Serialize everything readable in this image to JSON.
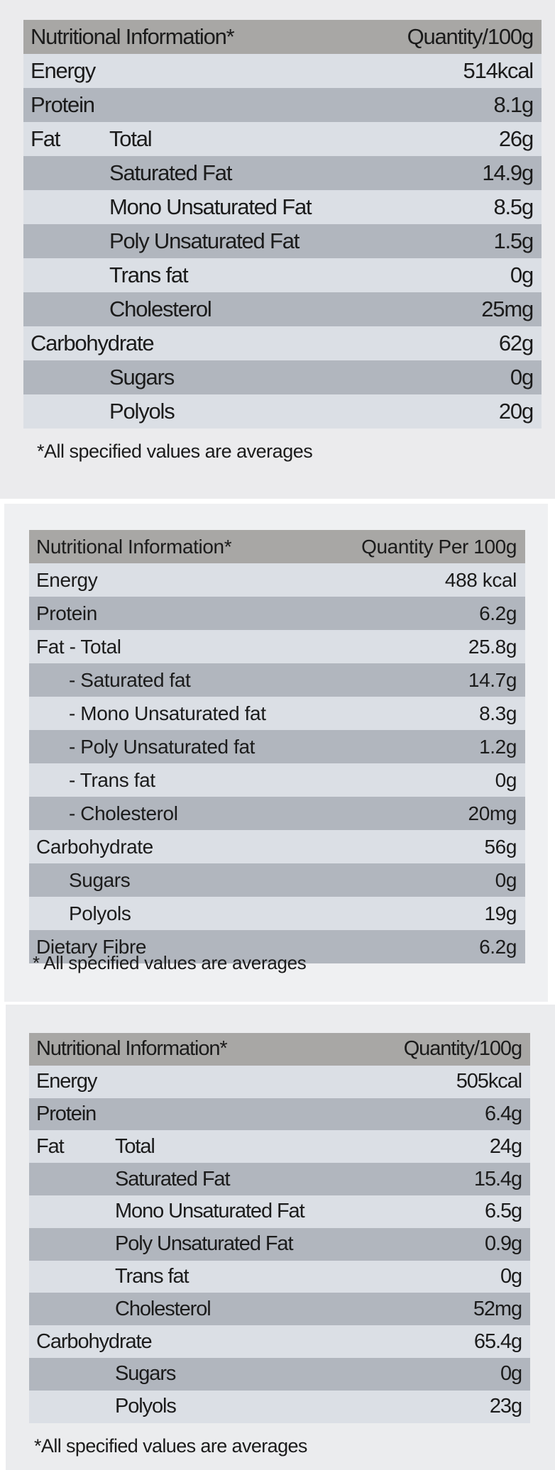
{
  "panels": [
    {
      "header": {
        "label": "Nutritional Information*",
        "value": "Quantity/100g"
      },
      "rows": [
        {
          "group": "",
          "label": "Energy",
          "value": "514kcal"
        },
        {
          "group": "",
          "label": "Protein",
          "value": "8.1g"
        },
        {
          "group": "Fat",
          "label": "Total",
          "value": "26g"
        },
        {
          "group": "",
          "label": "Saturated Fat",
          "value": "14.9g"
        },
        {
          "group": "",
          "label": "Mono Unsaturated Fat",
          "value": "8.5g"
        },
        {
          "group": "",
          "label": "Poly Unsaturated Fat",
          "value": "1.5g"
        },
        {
          "group": "",
          "label": "Trans fat",
          "value": "0g"
        },
        {
          "group": "",
          "label": "Cholesterol",
          "value": "25mg"
        },
        {
          "group": "",
          "label": "Carbohydrate",
          "value": "62g"
        },
        {
          "group": "",
          "label": "Sugars",
          "value": "0g"
        },
        {
          "group": "",
          "label": "Polyols",
          "value": "20g"
        }
      ],
      "footnote": "*All specified values are averages"
    },
    {
      "header": {
        "label": "Nutritional Information*",
        "value": "Quantity Per 100g"
      },
      "rows": [
        {
          "group": "",
          "label": "Energy",
          "value": "488 kcal"
        },
        {
          "group": "",
          "label": "Protein",
          "value": "6.2g"
        },
        {
          "group": "",
          "label": "Fat - Total",
          "value": "25.8g"
        },
        {
          "group": "",
          "label": "- Saturated fat",
          "value": "14.7g"
        },
        {
          "group": "",
          "label": "- Mono Unsaturated fat",
          "value": "8.3g"
        },
        {
          "group": "",
          "label": "- Poly Unsaturated fat",
          "value": "1.2g"
        },
        {
          "group": "",
          "label": "- Trans fat",
          "value": "0g"
        },
        {
          "group": "",
          "label": "- Cholesterol",
          "value": "20mg"
        },
        {
          "group": "",
          "label": "Carbohydrate",
          "value": "56g"
        },
        {
          "group": "",
          "label": "Sugars",
          "value": "0g"
        },
        {
          "group": "",
          "label": "Polyols",
          "value": "19g"
        },
        {
          "group": "",
          "label": "Dietary Fibre",
          "value": "6.2g"
        }
      ],
      "footnote": "* All specified values are averages"
    },
    {
      "header": {
        "label": "Nutritional Information*",
        "value": "Quantity/100g"
      },
      "rows": [
        {
          "group": "",
          "label": "Energy",
          "value": "505kcal"
        },
        {
          "group": "",
          "label": "Protein",
          "value": "6.4g"
        },
        {
          "group": "Fat",
          "label": "Total",
          "value": "24g"
        },
        {
          "group": "",
          "label": "Saturated Fat",
          "value": "15.4g"
        },
        {
          "group": "",
          "label": "Mono Unsaturated Fat",
          "value": "6.5g"
        },
        {
          "group": "",
          "label": "Poly Unsaturated Fat",
          "value": "0.9g"
        },
        {
          "group": "",
          "label": "Trans fat",
          "value": "0g"
        },
        {
          "group": "",
          "label": "Cholesterol",
          "value": "52mg"
        },
        {
          "group": "",
          "label": "Carbohydrate",
          "value": "65.4g"
        },
        {
          "group": "",
          "label": "Sugars",
          "value": "0g"
        },
        {
          "group": "",
          "label": "Polyols",
          "value": "23g"
        }
      ],
      "footnote": "*All specified values are averages"
    }
  ]
}
